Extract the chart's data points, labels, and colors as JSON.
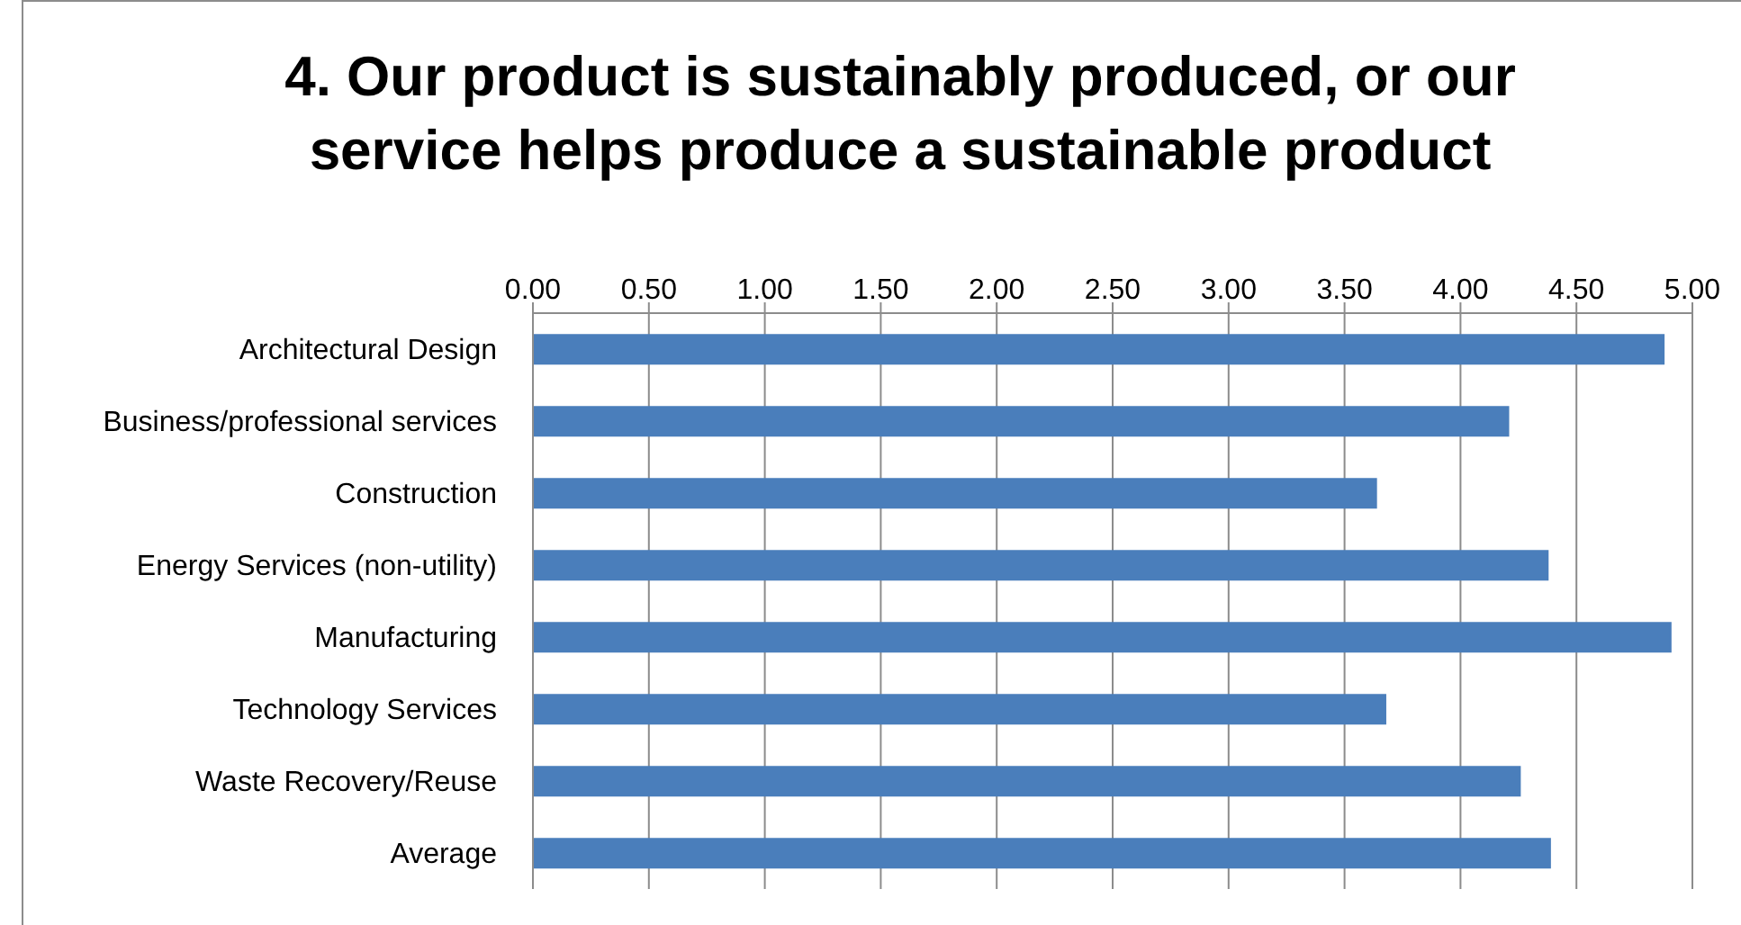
{
  "chart_data": {
    "type": "bar",
    "orientation": "horizontal",
    "title": "4. Our product is sustainably produced, or our service helps produce a sustainable product",
    "categories": [
      "Architectural Design",
      "Business/professional services",
      "Construction",
      "Energy Services (non-utility)",
      "Manufacturing",
      "Technology Services",
      "Waste Recovery/Reuse",
      "Average"
    ],
    "values": [
      4.88,
      4.21,
      3.64,
      4.38,
      4.91,
      3.68,
      4.26,
      4.39
    ],
    "color": "#4a7ebb",
    "xlim": [
      0,
      5
    ],
    "xticks": [
      {
        "value": 0,
        "label": "0.00"
      },
      {
        "value": 0.5,
        "label": "0.50"
      },
      {
        "value": 1,
        "label": "1.00"
      },
      {
        "value": 1.5,
        "label": "1.50"
      },
      {
        "value": 2,
        "label": "2.00"
      },
      {
        "value": 2.5,
        "label": "2.50"
      },
      {
        "value": 3,
        "label": "3.00"
      },
      {
        "value": 3.5,
        "label": "3.50"
      },
      {
        "value": 4,
        "label": "4.00"
      },
      {
        "value": 4.5,
        "label": "4.50"
      },
      {
        "value": 5,
        "label": "5.00"
      }
    ],
    "grid": "x",
    "legend": false
  }
}
